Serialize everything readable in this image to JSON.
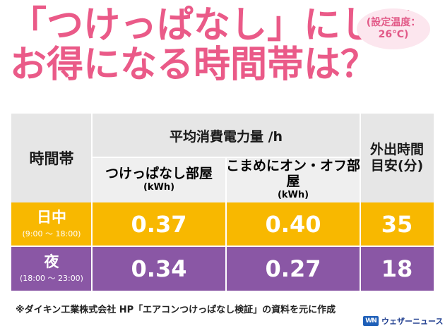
{
  "title": {
    "line1": "「つけっぱなし」にして",
    "line2": "お得になる時間帯は？"
  },
  "temp_badge": {
    "line1": "(設定温度：",
    "line2": "26℃)"
  },
  "table": {
    "header_time": "時間帯",
    "header_avg": "平均消費電力量 /h",
    "col1_label": "つけっぱなし部屋",
    "col1_unit": "(kWh)",
    "col2_label": "こまめにオン・オフ部屋",
    "col2_unit": "(kWh)",
    "col3_line1": "外出時間",
    "col3_line2": "目安(分)",
    "rows": [
      {
        "label": "日中",
        "range": "(9:00 ～ 18:00)",
        "always_on": "0.37",
        "on_off": "0.40",
        "minutes": "35",
        "color": "#f8b800"
      },
      {
        "label": "夜",
        "range": "(18:00 ～ 23:00)",
        "always_on": "0.34",
        "on_off": "0.27",
        "minutes": "18",
        "color": "#8a57a5"
      }
    ]
  },
  "footnote": "※ダイキン工業株式会社 HP「エアコンつけっぱなし検証」の資料を元に作成",
  "brand": {
    "logo": "WN",
    "name": "ウェザーニュース",
    "color": "#1e5fb8"
  },
  "colors": {
    "title": "#ea5a88",
    "header_bg": "#e6e6e6",
    "day": "#f8b800",
    "night": "#8a57a5"
  }
}
